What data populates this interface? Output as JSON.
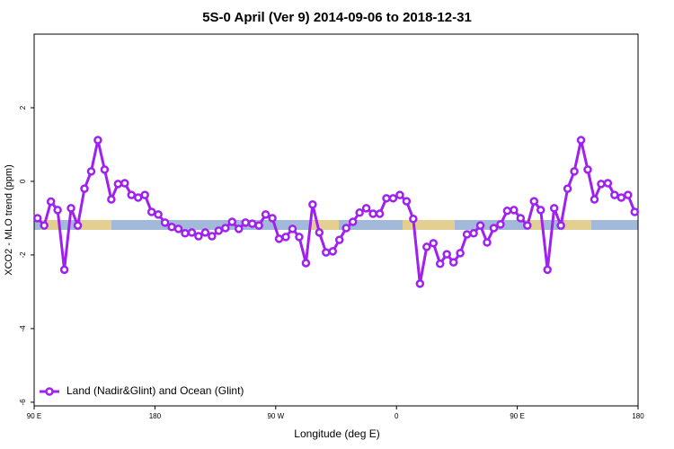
{
  "chart_data": {
    "type": "line",
    "title": "5S-0 April (Ver 9)   2014-09-06 to 2018-12-31",
    "x_label": "Longitude (deg E)",
    "y_label": "XCO2 - MLO trend (ppm)",
    "xlim": [
      90,
      540
    ],
    "xticks": [
      {
        "value": 90,
        "label": "90 E"
      },
      180,
      {
        "value": 270,
        "label": "90 W"
      },
      {
        "value": 360,
        "label": "0"
      },
      {
        "value": 450,
        "label": "90 E"
      },
      {
        "value": 540,
        "label": "180"
      }
    ],
    "ylim": [
      -6.1,
      4
    ],
    "yticks": [
      -6,
      -4,
      -2,
      0,
      2
    ],
    "legend": "bottom-left",
    "x": [
      92.5,
      97.5,
      102.5,
      107.5,
      112.5,
      117.5,
      122.5,
      127.5,
      132.5,
      137.5,
      142.5,
      147.5,
      152.5,
      157.5,
      162.5,
      167.5,
      172.5,
      177.5,
      182.5,
      187.5,
      192.5,
      197.5,
      202.5,
      207.5,
      212.5,
      217.5,
      222.5,
      227.5,
      232.5,
      237.5,
      242.5,
      247.5,
      252.5,
      257.5,
      262.5,
      267.5,
      272.5,
      277.5,
      282.5,
      287.5,
      292.5,
      297.5,
      302.5,
      307.5,
      312.5,
      317.5,
      322.5,
      327.5,
      332.5,
      337.5,
      342.5,
      347.5,
      352.5,
      357.5,
      362.5,
      367.5,
      372.5,
      377.5,
      382.5,
      387.5,
      392.5,
      397.5,
      402.5,
      407.5,
      412.5,
      417.5,
      422.5,
      427.5,
      432.5,
      437.5,
      442.5,
      447.5,
      452.5,
      457.5,
      462.5,
      467.5,
      472.5,
      477.5,
      482.5,
      487.5,
      492.5,
      497.5,
      502.5,
      507.5,
      512.5,
      517.5,
      522.5,
      527.5,
      532.5,
      537.5
    ],
    "series": [
      {
        "name": "Land (Nadir&Glint) and Ocean (Glint)",
        "color": "#a020f0",
        "values": [
          -1.0,
          -1.2,
          -0.55,
          -0.78,
          -2.4,
          -0.73,
          -1.2,
          -0.2,
          0.27,
          1.12,
          0.32,
          -0.49,
          -0.07,
          -0.05,
          -0.37,
          -0.44,
          -0.37,
          -0.83,
          -0.9,
          -1.12,
          -1.24,
          -1.29,
          -1.41,
          -1.39,
          -1.49,
          -1.39,
          -1.49,
          -1.34,
          -1.27,
          -1.1,
          -1.29,
          -1.12,
          -1.15,
          -1.2,
          -0.9,
          -1.0,
          -1.56,
          -1.51,
          -1.29,
          -1.51,
          -2.22,
          -0.63,
          -1.39,
          -1.93,
          -1.9,
          -1.59,
          -1.27,
          -1.1,
          -0.85,
          -0.73,
          -0.88,
          -0.88,
          -0.46,
          -0.46,
          -0.37,
          -0.54,
          -1.02,
          -2.78,
          -1.78,
          -1.68,
          -2.24,
          -1.98,
          -2.2,
          -1.95,
          -1.44,
          -1.41,
          -1.2,
          -1.66,
          -1.27,
          -1.17,
          -0.8,
          -0.78,
          -1.0,
          -1.2,
          -0.54,
          -0.78,
          -2.4,
          -0.73,
          -1.2,
          -0.2,
          0.27,
          1.12,
          0.32,
          -0.49,
          -0.07,
          -0.05,
          -0.37,
          -0.44,
          -0.37,
          -0.83
        ]
      }
    ]
  }
}
